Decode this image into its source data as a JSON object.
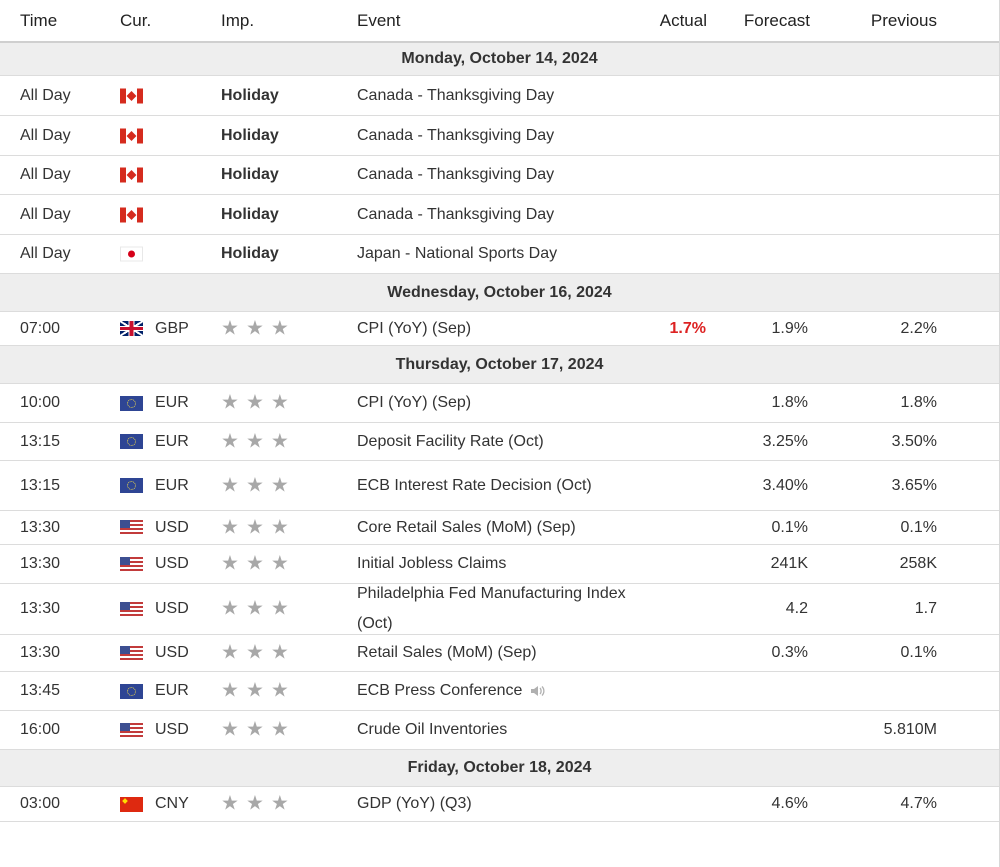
{
  "header": {
    "time": "Time",
    "currency": "Cur.",
    "importance": "Imp.",
    "event": "Event",
    "actual": "Actual",
    "forecast": "Forecast",
    "previous": "Previous"
  },
  "icons": {
    "star": "★",
    "star_icon_name": "star-icon",
    "speaker_icon_name": "speaker-icon"
  },
  "colors": {
    "actual_below_forecast": "#dd2222",
    "date_row_background": "#eeeeee",
    "star_gray": "#a8a8a8"
  },
  "days": [
    {
      "date": "Monday, October 14, 2024",
      "events": [
        {
          "time": "All Day",
          "flag": "ca",
          "currency": "",
          "importance": "Holiday",
          "event": "Canada - Thanksgiving Day",
          "actual": "",
          "forecast": "",
          "previous": ""
        },
        {
          "time": "All Day",
          "flag": "ca",
          "currency": "",
          "importance": "Holiday",
          "event": "Canada - Thanksgiving Day",
          "actual": "",
          "forecast": "",
          "previous": ""
        },
        {
          "time": "All Day",
          "flag": "ca",
          "currency": "",
          "importance": "Holiday",
          "event": "Canada - Thanksgiving Day",
          "actual": "",
          "forecast": "",
          "previous": ""
        },
        {
          "time": "All Day",
          "flag": "ca",
          "currency": "",
          "importance": "Holiday",
          "event": "Canada - Thanksgiving Day",
          "actual": "",
          "forecast": "",
          "previous": ""
        },
        {
          "time": "All Day",
          "flag": "jp",
          "currency": "",
          "importance": "Holiday",
          "event": "Japan - National Sports Day",
          "actual": "",
          "forecast": "",
          "previous": ""
        }
      ]
    },
    {
      "date": "Wednesday, October 16, 2024",
      "events": [
        {
          "time": "07:00",
          "flag": "gb",
          "currency": "GBP",
          "importance": 3,
          "event": "CPI (YoY) (Sep)",
          "actual": "1.7%",
          "actual_color": "#dd2222",
          "forecast": "1.9%",
          "previous": "2.2%"
        }
      ]
    },
    {
      "date": "Thursday, October 17, 2024",
      "events": [
        {
          "time": "10:00",
          "flag": "eu",
          "currency": "EUR",
          "importance": 3,
          "event": "CPI (YoY) (Sep)",
          "actual": "",
          "forecast": "1.8%",
          "previous": "1.8%"
        },
        {
          "time": "13:15",
          "flag": "eu",
          "currency": "EUR",
          "importance": 3,
          "event": "Deposit Facility Rate (Oct)",
          "actual": "",
          "forecast": "3.25%",
          "previous": "3.50%"
        },
        {
          "time": "13:15",
          "flag": "eu",
          "currency": "EUR",
          "importance": 3,
          "event": "ECB Interest Rate Decision (Oct)",
          "actual": "",
          "forecast": "3.40%",
          "previous": "3.65%"
        },
        {
          "time": "13:30",
          "flag": "us",
          "currency": "USD",
          "importance": 3,
          "event": "Core Retail Sales (MoM) (Sep)",
          "actual": "",
          "forecast": "0.1%",
          "previous": "0.1%"
        },
        {
          "time": "13:30",
          "flag": "us",
          "currency": "USD",
          "importance": 3,
          "event": "Initial Jobless Claims",
          "actual": "",
          "forecast": "241K",
          "previous": "258K"
        },
        {
          "time": "13:30",
          "flag": "us",
          "currency": "USD",
          "importance": 3,
          "event": "Philadelphia Fed Manufacturing Index (Oct)",
          "actual": "",
          "forecast": "4.2",
          "previous": "1.7"
        },
        {
          "time": "13:30",
          "flag": "us",
          "currency": "USD",
          "importance": 3,
          "event": "Retail Sales (MoM) (Sep)",
          "actual": "",
          "forecast": "0.3%",
          "previous": "0.1%"
        },
        {
          "time": "13:45",
          "flag": "eu",
          "currency": "EUR",
          "importance": 3,
          "event": "ECB Press Conference",
          "speaker": true,
          "actual": "",
          "forecast": "",
          "previous": ""
        },
        {
          "time": "16:00",
          "flag": "us",
          "currency": "USD",
          "importance": 3,
          "event": "Crude Oil Inventories",
          "actual": "",
          "forecast": "",
          "previous": "5.810M"
        }
      ]
    },
    {
      "date": "Friday, October 18, 2024",
      "events": [
        {
          "time": "03:00",
          "flag": "cn",
          "currency": "CNY",
          "importance": 3,
          "event": "GDP (YoY) (Q3)",
          "actual": "",
          "forecast": "4.6%",
          "previous": "4.7%"
        }
      ]
    }
  ]
}
